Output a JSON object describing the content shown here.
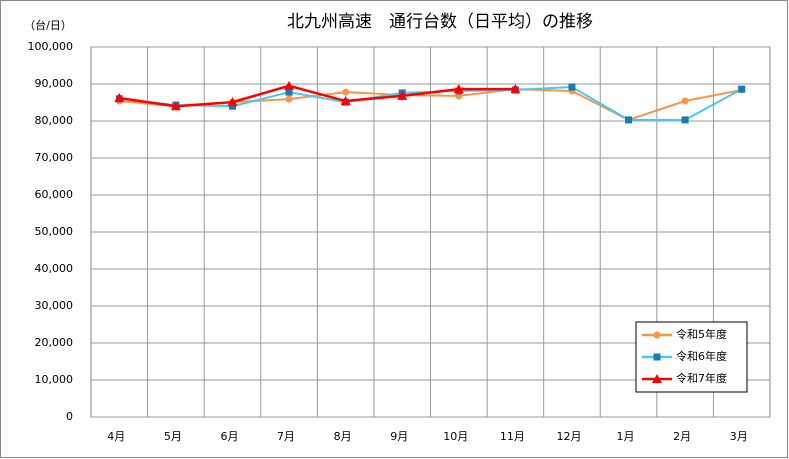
{
  "chart_data": {
    "type": "line",
    "title": "北九州高速　通行台数（日平均）の推移",
    "y_label": "（台/日）",
    "categories": [
      "4月",
      "5月",
      "6月",
      "7月",
      "8月",
      "9月",
      "10月",
      "11月",
      "12月",
      "1月",
      "2月",
      "3月"
    ],
    "series": [
      {
        "name": "令和5年度",
        "color": "#f79646",
        "marker": "circle",
        "values": [
          85400,
          84000,
          85100,
          85900,
          87800,
          87000,
          86800,
          88600,
          88100,
          80300,
          85400,
          88400
        ]
      },
      {
        "name": "令和6年度",
        "color": "#4bc8f0",
        "marker": "square",
        "values": [
          86000,
          84300,
          84000,
          87800,
          85100,
          87600,
          88100,
          88400,
          89200,
          80300,
          80300,
          88600
        ]
      },
      {
        "name": "令和7年度",
        "color": "#ff0000",
        "marker": "triangle",
        "values": [
          86200,
          84000,
          85100,
          89500,
          85400,
          86800,
          88600,
          88600,
          null,
          null,
          null,
          null
        ]
      }
    ],
    "ylim": [
      0,
      100000
    ],
    "yticks": [
      0,
      {
        "value": 10000,
        "label": "10,000"
      },
      {
        "value": 20000,
        "label": "20,000"
      },
      {
        "value": 30000,
        "label": "30,000"
      },
      {
        "value": 40000,
        "label": "40,000"
      },
      {
        "value": 50000,
        "label": "50,000"
      },
      {
        "value": 60000,
        "label": "60,000"
      },
      {
        "value": 70000,
        "label": "70,000"
      },
      {
        "value": 80000,
        "label": "80,000"
      },
      {
        "value": 90000,
        "label": "90,000"
      },
      {
        "value": 100000,
        "label": "100,000"
      }
    ],
    "grid": true,
    "legend": "bottom-right"
  }
}
